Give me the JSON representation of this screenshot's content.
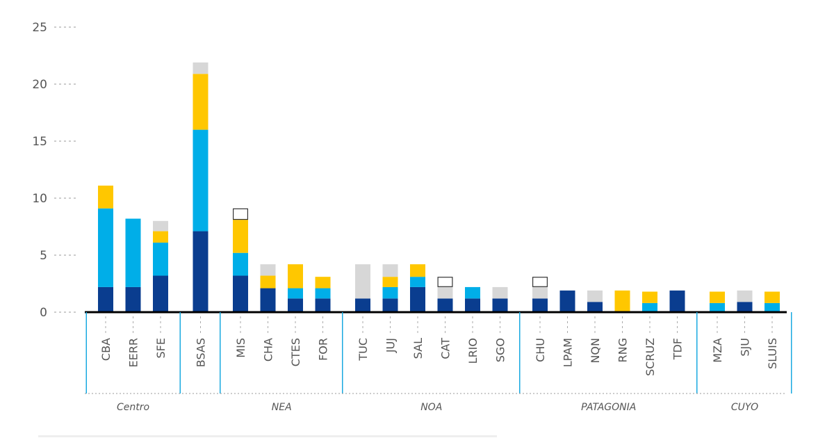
{
  "chart_data": {
    "type": "bar",
    "stacked": true,
    "categories": [
      "CBA",
      "EERR",
      "SFE",
      "BSAS",
      "MIS",
      "CHA",
      "CTES",
      "FOR",
      "TUC",
      "JUJ",
      "SAL",
      "CAT",
      "LRIO",
      "SGO",
      "CHU",
      "LPAM",
      "NQN",
      "RNG",
      "SCRUZ",
      "TDF",
      "MZA",
      "SJU",
      "SLUIS"
    ],
    "groups": [
      {
        "label": "Centro",
        "categories": [
          "CBA",
          "EERR",
          "SFE"
        ]
      },
      {
        "label": "",
        "categories": [
          "BSAS"
        ]
      },
      {
        "label": "NEA",
        "categories": [
          "MIS",
          "CHA",
          "CTES",
          "FOR"
        ]
      },
      {
        "label": "NOA",
        "categories": [
          "TUC",
          "JUJ",
          "SAL",
          "CAT",
          "LRIO",
          "SGO"
        ]
      },
      {
        "label": "PATAGONIA",
        "categories": [
          "CHU",
          "LPAM",
          "NQN",
          "RNG",
          "SCRUZ",
          "TDF"
        ]
      },
      {
        "label": "CUYO",
        "categories": [
          "MZA",
          "SJU",
          "SLUIS"
        ]
      }
    ],
    "series": [
      {
        "color": "#0a3d8f",
        "values": [
          2.2,
          2.2,
          3.2,
          7.1,
          3.2,
          2.1,
          1.2,
          1.2,
          1.2,
          1.2,
          2.2,
          1.2,
          1.2,
          1.2,
          1.2,
          1.9,
          0.9,
          0,
          0,
          1.9,
          0,
          0.9,
          0
        ]
      },
      {
        "color": "#00aee8",
        "values": [
          6.9,
          6.0,
          2.9,
          8.9,
          2.0,
          0,
          0.9,
          0.9,
          0,
          1.0,
          0.9,
          0,
          1.0,
          0,
          0,
          0,
          0,
          0,
          0.8,
          0,
          0.8,
          0,
          0.8
        ]
      },
      {
        "color": "#ffc700",
        "values": [
          2.0,
          0,
          1.0,
          4.9,
          2.9,
          1.1,
          2.1,
          1.0,
          0,
          0.9,
          1.1,
          0,
          0,
          0,
          0,
          0,
          0,
          1.9,
          1.0,
          0,
          1.0,
          0,
          1.0
        ]
      },
      {
        "color": "#d7d7d7",
        "values": [
          0,
          0,
          0.9,
          1.0,
          0,
          1.0,
          0,
          0,
          3.0,
          1.1,
          0,
          1.0,
          0,
          1.0,
          1.0,
          0,
          1.0,
          0,
          0,
          0,
          0,
          1.0,
          0
        ]
      },
      {
        "color": "#ffffff",
        "outline": true,
        "values": [
          0,
          0,
          0,
          0,
          1.0,
          0,
          0,
          0,
          0,
          0,
          0,
          0.9,
          0,
          0,
          0.9,
          0,
          0,
          0,
          0,
          0,
          0,
          0,
          0
        ]
      }
    ],
    "yticks": [
      0,
      5,
      10,
      15,
      20,
      25
    ],
    "ylim": [
      0,
      25
    ],
    "xlabel": "",
    "ylabel": "",
    "title": "",
    "grid": false,
    "legend": "none"
  }
}
